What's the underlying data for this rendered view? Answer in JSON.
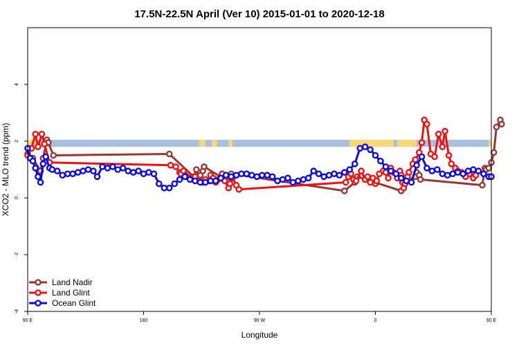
{
  "chart_data": {
    "type": "line",
    "title": "17.5N-22.5N April (Ver 10)   2015-01-01 to 2020-12-18",
    "xlabel": "Longitude",
    "ylabel": "XCO2 - MLO trend (ppm)",
    "xlim": [
      90,
      450
    ],
    "ylim": [
      -4,
      6
    ],
    "x_ticks": [
      {
        "value": 90,
        "label": "90 E"
      },
      {
        "value": 180,
        "label": "180"
      },
      {
        "value": 270,
        "label": "90 W"
      },
      {
        "value": 360,
        "label": "0"
      },
      {
        "value": 450,
        "label": "90 E"
      },
      {
        "value": 540,
        "label": "180"
      }
    ],
    "y_ticks": [
      {
        "value": -4,
        "label": "-4"
      },
      {
        "value": -2,
        "label": "-2"
      },
      {
        "value": 0,
        "label": "0"
      },
      {
        "value": 2,
        "label": "2"
      },
      {
        "value": 4,
        "label": "4"
      }
    ],
    "land_band": {
      "y_min": 1.8,
      "y_max": 2.05,
      "ocean_color": "#a9bfe0",
      "land_color": "#fcd777"
    },
    "land_segments": [
      [
        90,
        96
      ],
      [
        101,
        104
      ],
      [
        223,
        228
      ],
      [
        233,
        237
      ],
      [
        246,
        249
      ],
      [
        340,
        350
      ],
      [
        350,
        374
      ],
      [
        377,
        384
      ],
      [
        382,
        392
      ],
      [
        448,
        452
      ],
      [
        456,
        460
      ],
      [
        461,
        468
      ]
    ],
    "series": [
      {
        "name": "Land Nadir",
        "color": "#9b3530",
        "x": [
          90,
          94,
          100,
          102,
          105,
          106,
          110,
          200,
          219,
          221,
          223,
          224,
          226,
          227,
          245,
          246,
          248,
          336,
          344,
          346,
          380,
          383,
          391,
          392,
          394,
          395,
          443,
          445,
          446,
          448,
          450,
          452,
          454,
          457,
          458
        ],
        "values": [
          1.55,
          1.4,
          0.95,
          1.4,
          2.05,
          1.95,
          1.5,
          1.55,
          0.75,
          1.0,
          0.7,
          0.8,
          0.95,
          1.1,
          0.6,
          0.75,
          0.85,
          0.25,
          0.55,
          0.75,
          0.25,
          0.55,
          0.75,
          0.9,
          0.8,
          0.65,
          0.45,
          1.05,
          1.0,
          1.05,
          1.25,
          1.6,
          2.5,
          2.75,
          2.6
        ]
      },
      {
        "name": "Land Glint",
        "color": "#ee1111",
        "x": [
          90,
          93,
          96,
          98,
          101,
          103,
          107,
          201,
          205,
          208,
          209,
          211,
          218,
          219,
          220,
          223,
          226,
          228,
          231,
          232,
          234,
          236,
          238,
          241,
          243,
          246,
          247,
          249,
          252,
          254,
          337,
          339,
          341,
          343,
          345,
          349,
          352,
          354,
          356,
          358,
          360,
          361,
          363,
          366,
          368,
          370,
          372,
          374,
          376,
          377,
          379,
          380,
          381,
          382,
          383,
          385,
          386,
          389,
          391,
          394,
          396,
          398,
          400,
          403,
          406,
          409,
          412,
          414,
          417,
          419,
          422,
          424,
          427,
          430,
          433,
          436,
          438
        ],
        "values": [
          1.5,
          1.75,
          2.25,
          1.8,
          2.25,
          1.9,
          1.25,
          1.15,
          1.1,
          0.9,
          0.85,
          0.95,
          0.7,
          0.65,
          0.75,
          0.6,
          0.55,
          0.65,
          0.6,
          0.8,
          0.7,
          0.55,
          0.65,
          0.85,
          0.6,
          0.35,
          0.5,
          0.7,
          0.45,
          0.3,
          0.55,
          0.75,
          0.85,
          0.65,
          0.6,
          0.95,
          0.65,
          0.75,
          0.55,
          0.7,
          0.5,
          0.6,
          0.85,
          0.95,
          0.9,
          0.7,
          1.05,
          0.9,
          0.85,
          0.7,
          0.95,
          0.8,
          0.55,
          0.35,
          0.5,
          0.75,
          0.9,
          1.2,
          1.35,
          1.6,
          1.95,
          2.75,
          2.6,
          1.55,
          1.45,
          2.25,
          1.8,
          2.35,
          1.5,
          1.2,
          1.05,
          0.95,
          0.9,
          0.75,
          0.85,
          0.7,
          0.8
        ]
      },
      {
        "name": "Ocean Glint",
        "color": "#0a0ae6",
        "x": [
          90,
          92,
          94,
          96,
          98,
          100,
          102,
          104,
          107,
          109,
          113,
          117,
          121,
          125,
          129,
          133,
          137,
          141,
          144,
          148,
          152,
          156,
          160,
          164,
          168,
          172,
          176,
          180,
          184,
          188,
          192,
          196,
          200,
          204,
          208,
          212,
          216,
          220,
          224,
          228,
          232,
          236,
          240,
          244,
          248,
          252,
          256,
          260,
          264,
          268,
          272,
          276,
          280,
          284,
          288,
          292,
          296,
          300,
          304,
          308,
          312,
          316,
          320,
          324,
          328,
          332,
          336,
          340,
          344,
          348,
          352,
          356,
          360,
          364,
          368,
          372,
          376,
          380,
          384,
          388,
          392,
          396,
          400,
          404,
          408,
          412,
          416,
          420,
          424,
          428,
          432,
          436,
          440,
          444,
          448,
          450
        ],
        "values": [
          1.75,
          1.4,
          1.3,
          1.05,
          0.75,
          0.55,
          1.2,
          1.45,
          1.05,
          1.0,
          0.95,
          0.8,
          0.85,
          0.85,
          0.9,
          0.95,
          1.0,
          0.95,
          0.75,
          1.1,
          1.05,
          1.1,
          1.0,
          1.05,
          0.95,
          0.9,
          0.95,
          0.85,
          0.9,
          0.85,
          0.5,
          0.35,
          0.35,
          0.5,
          0.65,
          0.75,
          0.65,
          0.6,
          0.55,
          0.55,
          0.6,
          0.6,
          0.7,
          0.8,
          0.75,
          0.8,
          0.85,
          0.85,
          0.8,
          0.75,
          0.8,
          0.8,
          0.75,
          0.6,
          0.65,
          0.7,
          0.55,
          0.6,
          0.65,
          0.7,
          0.95,
          0.85,
          0.75,
          0.8,
          0.85,
          0.8,
          0.9,
          1.0,
          1.2,
          1.75,
          1.8,
          1.7,
          1.5,
          1.3,
          1.1,
          0.95,
          0.85,
          0.7,
          0.6,
          0.55,
          1.15,
          1.45,
          1.05,
          0.95,
          1.0,
          0.85,
          0.8,
          0.85,
          0.9,
          0.85,
          0.95,
          1.0,
          0.95,
          0.85,
          0.75,
          0.75
        ]
      }
    ],
    "legend": {
      "position": "bottom-left"
    }
  }
}
